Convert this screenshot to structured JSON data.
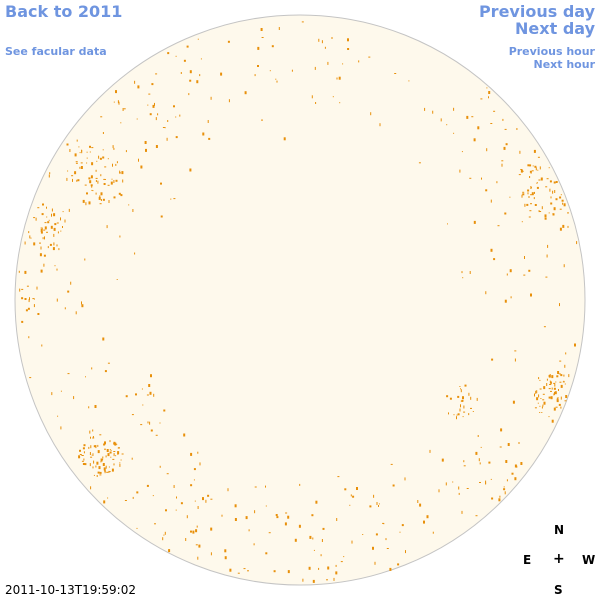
{
  "nav": {
    "back_label": "Back to 2011",
    "facular_label": "See facular data",
    "previous_day_label": "Previous day",
    "next_day_label": "Next day",
    "previous_hour_label": "Previous hour",
    "next_hour_label": "Next hour"
  },
  "compass": {
    "north": "N",
    "east": "E",
    "center": "+",
    "west": "W",
    "south": "S"
  },
  "timestamp": "2011-10-13T19:59:02",
  "colors": {
    "link": "#6f95e0",
    "disk_fill": "#fef9ec",
    "disk_outline": "#c4c4c4",
    "spot": "#e8900a"
  }
}
